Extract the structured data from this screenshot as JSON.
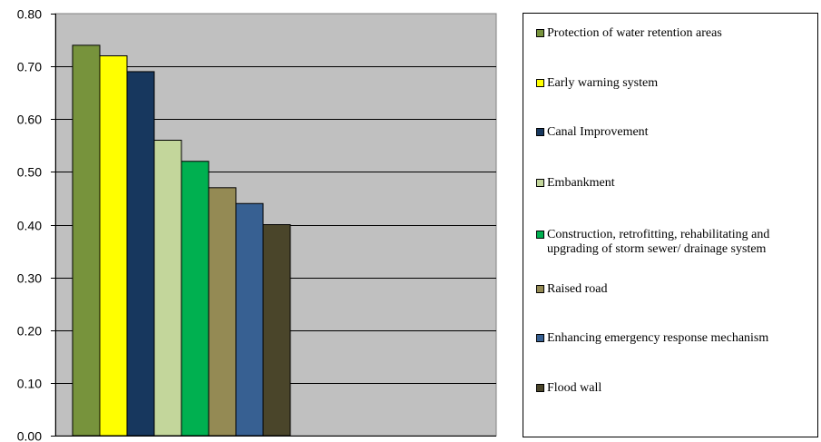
{
  "chart_data": {
    "type": "bar",
    "ylim": [
      0,
      0.8
    ],
    "y_ticks": [
      "0.00",
      "0.10",
      "0.20",
      "0.30",
      "0.40",
      "0.50",
      "0.60",
      "0.70",
      "0.80"
    ],
    "grid": true,
    "legend_position": "right",
    "series": [
      {
        "name": "Protection of water retention areas",
        "value": 0.74,
        "color": "#77933C"
      },
      {
        "name": "Early warning system",
        "value": 0.72,
        "color": "#FFFF00"
      },
      {
        "name": "Canal Improvement",
        "value": 0.69,
        "color": "#17375E"
      },
      {
        "name": "Embankment",
        "value": 0.56,
        "color": "#C3D69B"
      },
      {
        "name": "Construction, retrofitting, rehabilitating and upgrading of storm sewer/ drainage system",
        "value": 0.52,
        "color": "#00B050"
      },
      {
        "name": "Raised road",
        "value": 0.47,
        "color": "#948A54"
      },
      {
        "name": "Enhancing emergency response mechanism",
        "value": 0.44,
        "color": "#376092"
      },
      {
        "name": "Flood wall",
        "value": 0.4,
        "color": "#4A452A"
      }
    ],
    "plot_background": "#C0C0C0"
  }
}
